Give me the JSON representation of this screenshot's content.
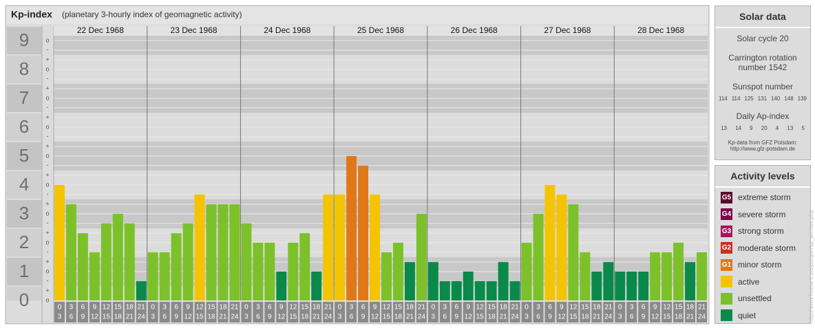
{
  "chart_data": {
    "type": "bar",
    "title": "Kp-index",
    "subtitle": "(planetary 3-hourly index of geomagnetic activity)",
    "ylim": [
      0,
      9
    ],
    "yticks": [
      0,
      1,
      2,
      3,
      4,
      5,
      6,
      7,
      8,
      9
    ],
    "minor_ticks": [
      {
        "value": 0,
        "label": "o"
      },
      {
        "value": 0.33,
        "label": "+"
      },
      {
        "value": 0.67,
        "label": "-"
      },
      {
        "value": 1,
        "label": "o"
      },
      {
        "value": 1.33,
        "label": "+"
      },
      {
        "value": 1.67,
        "label": "-"
      },
      {
        "value": 2,
        "label": "o"
      },
      {
        "value": 2.33,
        "label": "+"
      },
      {
        "value": 2.67,
        "label": "-"
      },
      {
        "value": 3,
        "label": "o"
      },
      {
        "value": 3.33,
        "label": "+"
      },
      {
        "value": 3.67,
        "label": "-"
      },
      {
        "value": 4,
        "label": "o"
      },
      {
        "value": 4.33,
        "label": "+"
      },
      {
        "value": 4.67,
        "label": "-"
      },
      {
        "value": 5,
        "label": "o"
      },
      {
        "value": 5.33,
        "label": "+"
      },
      {
        "value": 5.67,
        "label": "-"
      },
      {
        "value": 6,
        "label": "o"
      },
      {
        "value": 6.33,
        "label": "+"
      },
      {
        "value": 6.67,
        "label": "-"
      },
      {
        "value": 7,
        "label": "o"
      },
      {
        "value": 7.33,
        "label": "+"
      },
      {
        "value": 7.67,
        "label": "-"
      },
      {
        "value": 8,
        "label": "o"
      },
      {
        "value": 8.33,
        "label": "+"
      },
      {
        "value": 8.67,
        "label": "-"
      },
      {
        "value": 9,
        "label": "o"
      }
    ],
    "hours": [
      [
        "0",
        "3"
      ],
      [
        "3",
        "6"
      ],
      [
        "6",
        "9"
      ],
      [
        "9",
        "12"
      ],
      [
        "12",
        "15"
      ],
      [
        "15",
        "18"
      ],
      [
        "18",
        "21"
      ],
      [
        "21",
        "24"
      ]
    ],
    "days": [
      {
        "date": "22 Dec 1968",
        "values": [
          4,
          3.33,
          2.33,
          1.67,
          2.67,
          3,
          2.67,
          0.67
        ],
        "colors": [
          "#f5c400",
          "#7cc12a",
          "#7cc12a",
          "#7cc12a",
          "#7cc12a",
          "#7cc12a",
          "#7cc12a",
          "#0a8a4a"
        ]
      },
      {
        "date": "23 Dec 1968",
        "values": [
          1.67,
          1.67,
          2.33,
          2.67,
          3.67,
          3.33,
          3.33,
          3.33
        ],
        "colors": [
          "#7cc12a",
          "#7cc12a",
          "#7cc12a",
          "#7cc12a",
          "#f5c400",
          "#7cc12a",
          "#7cc12a",
          "#7cc12a"
        ]
      },
      {
        "date": "24 Dec 1968",
        "values": [
          2.67,
          2,
          2,
          1,
          2,
          2.33,
          1,
          3.67
        ],
        "colors": [
          "#7cc12a",
          "#7cc12a",
          "#7cc12a",
          "#0a8a4a",
          "#7cc12a",
          "#7cc12a",
          "#0a8a4a",
          "#f5c400"
        ]
      },
      {
        "date": "25 Dec 1968",
        "values": [
          3.67,
          5,
          4.67,
          3.67,
          1.67,
          2,
          1.33,
          3
        ],
        "colors": [
          "#f5c400",
          "#e07818",
          "#e07818",
          "#f5c400",
          "#7cc12a",
          "#7cc12a",
          "#0a8a4a",
          "#7cc12a"
        ]
      },
      {
        "date": "26 Dec 1968",
        "values": [
          1.33,
          0.67,
          0.67,
          1,
          0.67,
          0.67,
          1.33,
          0.67
        ],
        "colors": [
          "#0a8a4a",
          "#0a8a4a",
          "#0a8a4a",
          "#0a8a4a",
          "#0a8a4a",
          "#0a8a4a",
          "#0a8a4a",
          "#0a8a4a"
        ]
      },
      {
        "date": "27 Dec 1968",
        "values": [
          2,
          3,
          4,
          3.67,
          3.33,
          1.67,
          1,
          1.33
        ],
        "colors": [
          "#7cc12a",
          "#7cc12a",
          "#f5c400",
          "#f5c400",
          "#7cc12a",
          "#7cc12a",
          "#0a8a4a",
          "#0a8a4a"
        ]
      },
      {
        "date": "28 Dec 1968",
        "values": [
          1,
          1,
          1,
          1.67,
          1.67,
          2,
          1.33,
          1.67
        ],
        "colors": [
          "#0a8a4a",
          "#0a8a4a",
          "#0a8a4a",
          "#7cc12a",
          "#7cc12a",
          "#7cc12a",
          "#0a8a4a",
          "#7cc12a"
        ]
      }
    ]
  },
  "solar_data": {
    "title": "Solar data",
    "solar_cycle": "Solar cycle 20",
    "carrington": "Carrington rotation number 1542",
    "sunspot_title": "Sunspot number",
    "sunspot_numbers": [
      114,
      114,
      125,
      131,
      140,
      148,
      139
    ],
    "ap_title": "Daily Ap-index",
    "ap_values": [
      13,
      14,
      9,
      20,
      4,
      13,
      5
    ],
    "source": "Kp-data from GFZ Potsdam:",
    "source_url": "http://www.gfz-potsdam.de"
  },
  "activity_levels": {
    "title": "Activity levels",
    "levels": [
      {
        "badge": "G5",
        "label": "extreme storm",
        "color": "#5a0a2a"
      },
      {
        "badge": "G4",
        "label": "severe storm",
        "color": "#7a0a4a"
      },
      {
        "badge": "G3",
        "label": "strong storm",
        "color": "#a8145e"
      },
      {
        "badge": "G2",
        "label": "moderate storm",
        "color": "#c8321e"
      },
      {
        "badge": "G1",
        "label": "minor storm",
        "color": "#e07818"
      },
      {
        "label": "active",
        "color": "#f5c400"
      },
      {
        "label": "unsettled",
        "color": "#7cc12a"
      },
      {
        "label": "quiet",
        "color": "#0a8a4a"
      }
    ]
  },
  "watermark": "http://www.freese-it.eu/juergen/sp_archive.php"
}
